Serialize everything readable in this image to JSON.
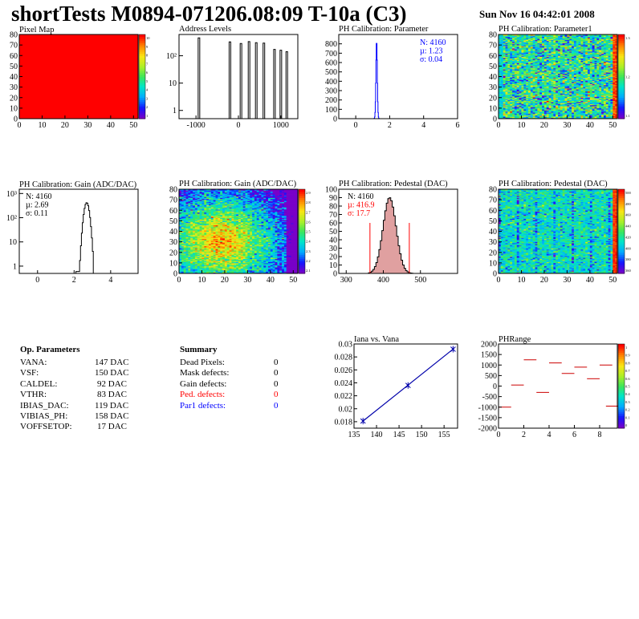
{
  "header": {
    "title": "shortTests M0894-071206.08:09 T-10a (C3)",
    "timestamp": "Sun Nov 16 04:42:01 2008"
  },
  "colors": {
    "stat_blue": "#0000ff",
    "stat_red": "#ff0000",
    "hist_black": "#000000",
    "fit_blue": "#0000aa",
    "pedestal_fill": "#e0a0a0"
  },
  "chart_data": [
    {
      "id": "pixel-map",
      "type": "heatmap",
      "title": "Pixel Map",
      "xlim": [
        0,
        52
      ],
      "ylim": [
        0,
        80
      ],
      "x_ticks": [
        0,
        10,
        20,
        30,
        40,
        50
      ],
      "y_ticks": [
        0,
        10,
        20,
        30,
        40,
        50,
        60,
        70,
        80
      ],
      "uniform_value": 10,
      "palette_ticks": [
        "10",
        "9",
        "8",
        "7",
        "6",
        "5",
        "4",
        "3",
        "2",
        "1"
      ]
    },
    {
      "id": "address-levels",
      "type": "bar",
      "title": "Address Levels",
      "log_y": true,
      "xlim": [
        -1400,
        1400
      ],
      "ylim": [
        0.5,
        600
      ],
      "x_ticks": [
        -1000,
        0,
        1000
      ],
      "y_tick_labels": [
        "1",
        "10",
        "10²"
      ],
      "peaks": [
        {
          "x": -930,
          "count": 450
        },
        {
          "x": -200,
          "count": 320
        },
        {
          "x": 60,
          "count": 280
        },
        {
          "x": 250,
          "count": 330
        },
        {
          "x": 420,
          "count": 300
        },
        {
          "x": 600,
          "count": 290
        },
        {
          "x": 850,
          "count": 170
        },
        {
          "x": 1000,
          "count": 160
        },
        {
          "x": 1140,
          "count": 140
        }
      ]
    },
    {
      "id": "ph-cal-parameter",
      "type": "bar",
      "title": "PH Calibration: Parameter",
      "xlim": [
        -1,
        6
      ],
      "ylim": [
        0,
        900
      ],
      "x_ticks": [
        0,
        2,
        4,
        6
      ],
      "y_ticks": [
        0,
        100,
        200,
        300,
        400,
        500,
        600,
        700,
        800
      ],
      "stats": [
        "N: 4160",
        "µ: 1.23",
        "σ: 0.04"
      ],
      "mean": 1.23,
      "sigma": 0.04,
      "peak": 830
    },
    {
      "id": "ph-cal-parameter1",
      "type": "heatmap",
      "title": "PH Calibration: Parameter1",
      "xlim": [
        0,
        52
      ],
      "ylim": [
        0,
        80
      ],
      "x_ticks": [
        0,
        10,
        20,
        30,
        40,
        50
      ],
      "y_ticks": [
        0,
        10,
        20,
        30,
        40,
        50,
        60,
        70,
        80
      ],
      "palette_ticks": [
        "1.3",
        "1.2",
        "1.1"
      ]
    },
    {
      "id": "ph-cal-gain",
      "type": "bar",
      "title": "PH Calibration: Gain (ADC/DAC)",
      "log_y": true,
      "xlim": [
        -1,
        5.5
      ],
      "ylim": [
        0.5,
        1500
      ],
      "x_ticks": [
        0,
        2,
        4
      ],
      "y_tick_labels": [
        "1",
        "10",
        "10²",
        "10³"
      ],
      "stats": [
        "N: 4160",
        "µ: 2.69",
        "σ: 0.11"
      ],
      "mean": 2.69,
      "sigma": 0.11,
      "peak": 420
    },
    {
      "id": "ph-cal-gain-map",
      "type": "heatmap",
      "title": "PH Calibration: Gain (ADC/DAC)",
      "xlim": [
        0,
        52
      ],
      "ylim": [
        0,
        80
      ],
      "x_ticks": [
        0,
        10,
        20,
        30,
        40,
        50
      ],
      "y_ticks": [
        0,
        10,
        20,
        30,
        40,
        50,
        60,
        70,
        80
      ],
      "palette_ticks": [
        "2.9",
        "2.8",
        "2.7",
        "2.6",
        "2.5",
        "2.4",
        "2.3",
        "2.2",
        "2.1"
      ]
    },
    {
      "id": "ph-cal-pedestal",
      "type": "bar",
      "title": "PH Calibration: Pedestal (DAC)",
      "xlim": [
        280,
        600
      ],
      "ylim": [
        0,
        100
      ],
      "x_ticks": [
        300,
        400,
        500
      ],
      "y_ticks": [
        0,
        10,
        20,
        30,
        40,
        50,
        60,
        70,
        80,
        90,
        100
      ],
      "stats": [
        "N: 4160",
        "µ: 416.9",
        "σ: 17.7"
      ],
      "mean": 416.9,
      "sigma": 17.7,
      "peak": 90,
      "cut_lines": [
        364,
        470
      ]
    },
    {
      "id": "ph-cal-pedestal-map",
      "type": "heatmap",
      "title": "PH Calibration: Pedestal (DAC)",
      "xlim": [
        0,
        52
      ],
      "ylim": [
        0,
        80
      ],
      "x_ticks": [
        0,
        10,
        20,
        30,
        40,
        50
      ],
      "y_ticks": [
        0,
        10,
        20,
        30,
        40,
        50,
        60,
        70,
        80
      ],
      "palette_ticks": [
        "500",
        "480",
        "460",
        "440",
        "420",
        "400",
        "380",
        "360"
      ]
    },
    {
      "id": "iana-vs-vana",
      "type": "line",
      "title": "Iana vs. Vana",
      "xlim": [
        135,
        158
      ],
      "ylim": [
        0.017,
        0.03
      ],
      "x_ticks": [
        135,
        140,
        145,
        150,
        155
      ],
      "y_ticks": [
        0.018,
        0.02,
        0.022,
        0.024,
        0.026,
        0.028,
        0.03
      ],
      "points": [
        {
          "x": 137,
          "y": 0.0181
        },
        {
          "x": 147,
          "y": 0.0236
        },
        {
          "x": 157,
          "y": 0.0292
        }
      ]
    },
    {
      "id": "ph-range",
      "type": "scatter",
      "title": "PHRange",
      "xlim": [
        0,
        9.4
      ],
      "ylim": [
        -2000,
        2000
      ],
      "x_ticks": [
        0,
        2,
        4,
        6,
        8
      ],
      "y_ticks": [
        -2000,
        -1500,
        -1000,
        -500,
        0,
        500,
        1000,
        1500,
        2000
      ],
      "segments": [
        {
          "x": 0.5,
          "y": -1000
        },
        {
          "x": 1.5,
          "y": 50
        },
        {
          "x": 2.5,
          "y": 1250
        },
        {
          "x": 3.5,
          "y": -300
        },
        {
          "x": 4.5,
          "y": 1100
        },
        {
          "x": 5.5,
          "y": 600
        },
        {
          "x": 6.5,
          "y": 900
        },
        {
          "x": 7.5,
          "y": 350
        },
        {
          "x": 8.5,
          "y": 1000
        },
        {
          "x": 9.0,
          "y": -950
        }
      ],
      "palette_ticks": [
        "1",
        "0.9",
        "0.8",
        "0.7",
        "0.6",
        "0.5",
        "0.4",
        "0.3",
        "0.2",
        "0.1",
        "0"
      ]
    }
  ],
  "op_parameters": {
    "title": "Op. Parameters",
    "rows": [
      {
        "name": "VANA:",
        "value": "147 DAC"
      },
      {
        "name": "VSF:",
        "value": "150 DAC"
      },
      {
        "name": "CALDEL:",
        "value": "92 DAC"
      },
      {
        "name": "VTHR:",
        "value": "83 DAC"
      },
      {
        "name": "IBIAS_DAC:",
        "value": "119 DAC"
      },
      {
        "name": "VIBIAS_PH:",
        "value": "158 DAC"
      },
      {
        "name": "VOFFSETOP:",
        "value": "17 DAC"
      }
    ]
  },
  "summary": {
    "title": "Summary",
    "rows": [
      {
        "name": "Dead Pixels:",
        "value": "0",
        "color": "#000000"
      },
      {
        "name": "Mask defects:",
        "value": "0",
        "color": "#000000"
      },
      {
        "name": "Gain defects:",
        "value": "0",
        "color": "#000000"
      },
      {
        "name": "Ped. defects:",
        "value": "0",
        "color": "#ff0000"
      },
      {
        "name": "Par1 defects:",
        "value": "0",
        "color": "#0000ff"
      }
    ]
  }
}
